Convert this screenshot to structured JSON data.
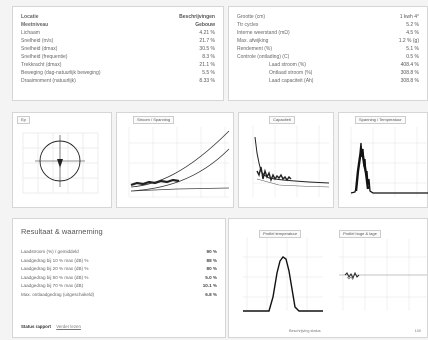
{
  "top_left": {
    "header": {
      "label": "Locatie",
      "value": "Beschrijvingen"
    },
    "subheader": {
      "label": "Meetniveau",
      "value": "Gebouw"
    },
    "rows": [
      {
        "label": "Lichaam",
        "value": "4.21 %"
      },
      {
        "label": "Snelheid (m/s)",
        "value": "21.7 %"
      },
      {
        "label": "Snelheid (dmax)",
        "value": "30.5 %"
      },
      {
        "label": "Snelheid (frequentie)",
        "value": "8.3 %"
      },
      {
        "label": "Trekkracht (dmax)",
        "value": "21.1 %"
      },
      {
        "label": "Beweging (dag-natuurlijk beweging)",
        "value": "5.5 %"
      },
      {
        "label": "Draaimoment (natuurlijk)",
        "value": "8.33 %"
      }
    ]
  },
  "top_right": {
    "rows": [
      {
        "label": "Grootte (cm)",
        "value": "1 kwh 4°",
        "indent": false
      },
      {
        "label": "Ttr cycles",
        "value": "5.2 %",
        "indent": false
      },
      {
        "label": "Interne weerstand (mΩ)",
        "value": "4.5 %",
        "indent": false
      },
      {
        "label": "Max. afwijking",
        "value": "1.2 % (g)",
        "indent": false
      },
      {
        "label": "Rendement (%)",
        "value": "5.1 %",
        "indent": false
      },
      {
        "label": "Controle (ontlading) (C)",
        "value": "0.5 %",
        "indent": false
      },
      {
        "label": "Laad stroom (%)",
        "value": "408.4 %",
        "indent": true
      },
      {
        "label": "Ontlaad stroom (%)",
        "value": "308.8 %",
        "indent": true
      },
      {
        "label": "Laad capaciteit (Ah)",
        "value": "308.8 %",
        "indent": true
      }
    ]
  },
  "charts": [
    {
      "title": "Ep"
    },
    {
      "title": "Stroom / Spanning"
    },
    {
      "title": "Capaciteit"
    },
    {
      "title": "Spanning / Temperatuur"
    }
  ],
  "results": {
    "title": "Resultaat & waarneming",
    "rows": [
      {
        "label": "Laadstroom (%) / gemiddeld",
        "value": "90 %"
      },
      {
        "label": "Laadgedrag bij 10 % max (dB) %",
        "value": "88 %"
      },
      {
        "label": "Laadgedrag bij 20 % max (dB) %",
        "value": "80 %"
      },
      {
        "label": "Laadgedrag bij 50 % max (dB) %",
        "value": "5.0 %"
      },
      {
        "label": "Laadgedrag bij 70 % max (dB)",
        "value": "10.1 %"
      },
      {
        "label": "Max. ontlaadgedrag (uitgeschakeld)",
        "value": "6.8 %"
      }
    ],
    "footer_label": "Status rapport",
    "footer_link": "Verder lezen"
  },
  "bottom_charts": [
    {
      "title": "Profiel temperatuur"
    },
    {
      "title": "Profiel hoge & lage"
    }
  ],
  "bottom_footer": {
    "left": "Beschrijving status",
    "right": "100"
  }
}
